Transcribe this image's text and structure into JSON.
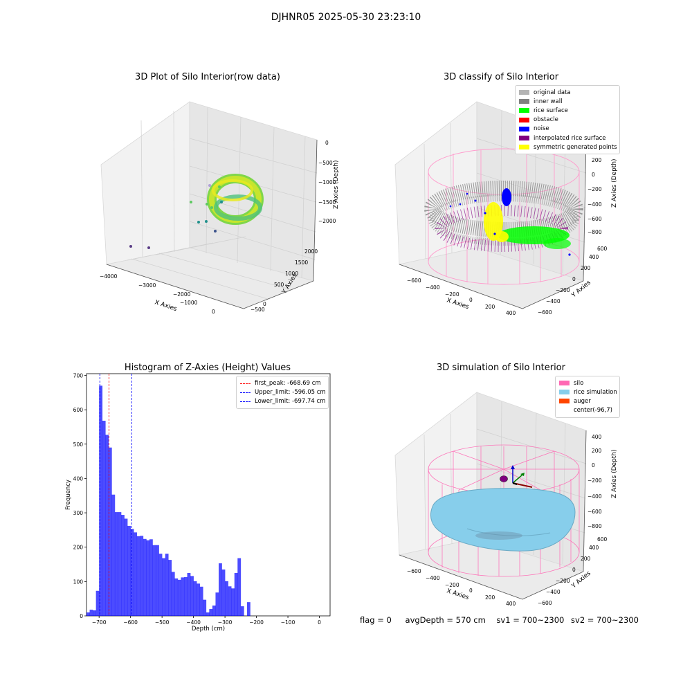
{
  "figure": {
    "title": "DJHNR05 2025-05-30 23:23:10",
    "footer": {
      "flag": "flag = 0",
      "avg_depth": "avgDepth = 570 cm",
      "sv1": "sv1 = 700~2300",
      "sv2": "sv2 = 700~2300"
    }
  },
  "chart_data": [
    {
      "type": "scatter",
      "title": "3D Plot of Silo Interior(row data)",
      "xlabel": "X Axies",
      "ylabel": "Y Axies",
      "zlabel": "Z Axies (Depth)",
      "x_ticks": [
        "−4000",
        "−3000",
        "−2000",
        "−1000",
        "0"
      ],
      "y_ticks": [
        "−500",
        "0",
        "500",
        "1000",
        "1500",
        "2000"
      ],
      "z_ticks": [
        "−2000",
        "−1500",
        "−1000",
        "−500",
        "0"
      ],
      "colormap": [
        "#440154",
        "#3b528b",
        "#21918c",
        "#5ec962",
        "#fde725"
      ]
    },
    {
      "type": "scatter",
      "title": "3D classify of Silo Interior",
      "xlabel": "X Axies",
      "ylabel": "Y Axies",
      "zlabel": "Z Axies (Depth)",
      "x_ticks": [
        "−600",
        "−400",
        "−200",
        "0",
        "200",
        "400"
      ],
      "y_ticks": [
        "−600",
        "−400",
        "−200",
        "0",
        "200",
        "400",
        "600"
      ],
      "z_ticks": [
        "−800",
        "−600",
        "−400",
        "−200",
        "0",
        "200"
      ],
      "legend": [
        {
          "label": "original data",
          "color": "#b4b4b4"
        },
        {
          "label": "inner wall",
          "color": "#808080"
        },
        {
          "label": "rice surface",
          "color": "#00ff00"
        },
        {
          "label": "obstacle",
          "color": "#ff0000"
        },
        {
          "label": "noise",
          "color": "#0000ff"
        },
        {
          "label": "interpolated rice surface",
          "color": "#800080"
        },
        {
          "label": "symmetric generated points",
          "color": "#ffff00"
        }
      ]
    },
    {
      "type": "bar",
      "title": "Histogram of Z-Axies (Height) Values",
      "xlabel": "Depth (cm)",
      "ylabel": "Frequency",
      "xlim": [
        -740,
        34
      ],
      "ylim": [
        0,
        705
      ],
      "bar_color": "#0000ff",
      "bin_start": -740,
      "bin_width": 10,
      "values": [
        10,
        18,
        16,
        73,
        670,
        568,
        527,
        490,
        353,
        302,
        302,
        294,
        283,
        262,
        253,
        243,
        232,
        233,
        224,
        220,
        223,
        206,
        206,
        181,
        168,
        181,
        163,
        128,
        109,
        105,
        112,
        113,
        125,
        116,
        101,
        94,
        85,
        47,
        10,
        20,
        30,
        68,
        153,
        135,
        101,
        86,
        80,
        125,
        168,
        28,
        0,
        40
      ],
      "x_ticks": [
        -700,
        -600,
        -500,
        -400,
        -300,
        -200,
        -100,
        0
      ],
      "y_ticks": [
        0,
        100,
        200,
        300,
        400,
        500,
        600,
        700
      ],
      "reference_lines": [
        {
          "label": "first_peak: -668.69 cm",
          "x": -668.69,
          "color": "#ff0000"
        },
        {
          "label": "Upper_limit: -596.05 cm",
          "x": -596.05,
          "color": "#0000ff"
        },
        {
          "label": "Lower_limit: -697.74 cm",
          "x": -697.74,
          "color": "#0000ff"
        }
      ]
    },
    {
      "type": "scatter",
      "title": "3D simulation of Silo Interior",
      "xlabel": "X Axies",
      "ylabel": "Y Axies",
      "zlabel": "Z Axies (Depth)",
      "x_ticks": [
        "−600",
        "−400",
        "−200",
        "0",
        "200",
        "400"
      ],
      "y_ticks": [
        "−600",
        "−400",
        "−200",
        "0",
        "200",
        "400",
        "600"
      ],
      "z_ticks": [
        "−800",
        "−600",
        "−400",
        "−200",
        "0",
        "200",
        "400"
      ],
      "legend": [
        {
          "label": "silo",
          "color": "#ff69b4"
        },
        {
          "label": "rice simulation",
          "color": "#87ceeb"
        },
        {
          "label": "auger",
          "color": "#ff4500"
        },
        {
          "label": "center(-96,7)",
          "color": ""
        }
      ]
    }
  ]
}
